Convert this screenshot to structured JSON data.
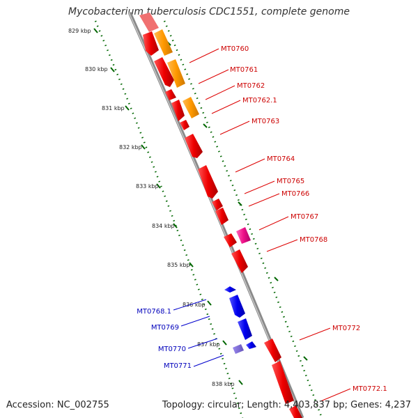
{
  "title": "Mycobacterium tuberculosis CDC1551, complete genome",
  "footer": {
    "accession": "Accession: NC_002755",
    "topology": "Topology: circular; Length: 4,403,837 bp; Genes: 4,237"
  },
  "kbp_labels": [
    "829 kbp",
    "830 kbp",
    "831 kbp",
    "832 kbp",
    "833 kbp",
    "834 kbp",
    "835 kbp",
    "836 kbp",
    "837 kbp",
    "838 kbp"
  ],
  "forward_genes": [
    "MT0760",
    "MT0761",
    "MT0762",
    "MT0762.1",
    "MT0763",
    "MT0764",
    "MT0765",
    "MT0766",
    "MT0767",
    "MT0768",
    "MT0772",
    "MT0772.1"
  ],
  "reverse_genes": [
    "MT0768.1",
    "MT0769",
    "MT0770",
    "MT0771"
  ],
  "colors": {
    "cds": "#ee0000",
    "rna": "#ff9900",
    "pink": "#ee1188",
    "reverse": "#0000ee",
    "purple": "#7766cc",
    "backbone": "#8a8a8a",
    "dots": "#006600"
  }
}
